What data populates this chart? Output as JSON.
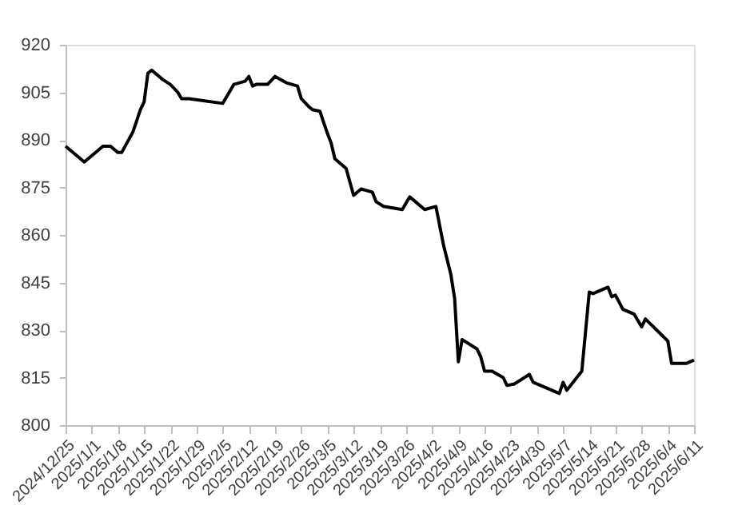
{
  "chart_data": {
    "type": "line",
    "x": [
      "2024-12-25",
      "2024-12-28",
      "2024-12-30",
      "2025-01-04",
      "2025-01-06",
      "2025-01-08",
      "2025-01-09",
      "2025-01-12",
      "2025-01-14",
      "2025-01-15",
      "2025-01-16",
      "2025-01-17",
      "2025-01-20",
      "2025-01-22",
      "2025-01-24",
      "2025-01-25",
      "2025-01-27",
      "2025-02-05",
      "2025-02-06",
      "2025-02-08",
      "2025-02-11",
      "2025-02-12",
      "2025-02-13",
      "2025-02-14",
      "2025-02-17",
      "2025-02-19",
      "2025-02-22",
      "2025-02-25",
      "2025-02-26",
      "2025-02-28",
      "2025-03-01",
      "2025-03-03",
      "2025-03-05",
      "2025-03-06",
      "2025-03-07",
      "2025-03-08",
      "2025-03-10",
      "2025-03-12",
      "2025-03-14",
      "2025-03-17",
      "2025-03-18",
      "2025-03-20",
      "2025-03-25",
      "2025-03-27",
      "2025-03-31",
      "2025-04-03",
      "2025-04-05",
      "2025-04-07",
      "2025-04-08",
      "2025-04-09",
      "2025-04-10",
      "2025-04-14",
      "2025-04-15",
      "2025-04-16",
      "2025-04-18",
      "2025-04-21",
      "2025-04-22",
      "2025-04-24",
      "2025-04-28",
      "2025-04-29",
      "2025-05-06",
      "2025-05-07",
      "2025-05-08",
      "2025-05-12",
      "2025-05-14",
      "2025-05-15",
      "2025-05-19",
      "2025-05-20",
      "2025-05-21",
      "2025-05-23",
      "2025-05-26",
      "2025-05-28",
      "2025-05-29",
      "2025-06-01",
      "2025-06-04",
      "2025-06-05",
      "2025-06-09",
      "2025-06-11"
    ],
    "series": [
      {
        "color": "#000000",
        "values": [
          888,
          885,
          883,
          888,
          888,
          886,
          886,
          892.5,
          899.5,
          902,
          911,
          912,
          909,
          907.5,
          905,
          903,
          903,
          901.5,
          903.5,
          907.5,
          908.5,
          910,
          907,
          907.5,
          907.5,
          910,
          908,
          907,
          903,
          900.5,
          899.5,
          899,
          892,
          889,
          884,
          883,
          881,
          872.5,
          874.5,
          873.5,
          870.5,
          869,
          868,
          872,
          868,
          869,
          857,
          847.5,
          840,
          820,
          827,
          824,
          821.5,
          817,
          817,
          815,
          812.5,
          813,
          816,
          813.5,
          810,
          813.5,
          811,
          817,
          842,
          841.5,
          843.5,
          840.5,
          841,
          836.5,
          835,
          831,
          833.5,
          830,
          826.5,
          819.5,
          819.5,
          820.5
        ]
      }
    ],
    "xlim": [
      "2024-12-25",
      "2025-06-11"
    ],
    "xticks": [
      {
        "value": "2024-12-25",
        "label": "2024/12/25"
      },
      {
        "value": "2025-01-01",
        "label": "2025/1/1"
      },
      {
        "value": "2025-01-08",
        "label": "2025/1/8"
      },
      {
        "value": "2025-01-15",
        "label": "2025/1/15"
      },
      {
        "value": "2025-01-22",
        "label": "2025/1/22"
      },
      {
        "value": "2025-01-29",
        "label": "2025/1/29"
      },
      {
        "value": "2025-02-05",
        "label": "2025/2/5"
      },
      {
        "value": "2025-02-12",
        "label": "2025/2/12"
      },
      {
        "value": "2025-02-19",
        "label": "2025/2/19"
      },
      {
        "value": "2025-02-26",
        "label": "2025/2/26"
      },
      {
        "value": "2025-03-05",
        "label": "2025/3/5"
      },
      {
        "value": "2025-03-12",
        "label": "2025/3/12"
      },
      {
        "value": "2025-03-19",
        "label": "2025/3/19"
      },
      {
        "value": "2025-03-26",
        "label": "2025/3/26"
      },
      {
        "value": "2025-04-02",
        "label": "2025/4/2"
      },
      {
        "value": "2025-04-09",
        "label": "2025/4/9"
      },
      {
        "value": "2025-04-16",
        "label": "2025/4/16"
      },
      {
        "value": "2025-04-23",
        "label": "2025/4/23"
      },
      {
        "value": "2025-04-30",
        "label": "2025/4/30"
      },
      {
        "value": "2025-05-07",
        "label": "2025/5/7"
      },
      {
        "value": "2025-05-14",
        "label": "2025/5/14"
      },
      {
        "value": "2025-05-21",
        "label": "2025/5/21"
      },
      {
        "value": "2025-05-28",
        "label": "2025/5/28"
      },
      {
        "value": "2025-06-04",
        "label": "2025/6/4"
      },
      {
        "value": "2025-06-11",
        "label": "2025/6/11"
      }
    ],
    "ylim": [
      800,
      920
    ],
    "yticks": [
      800,
      815,
      830,
      845,
      860,
      875,
      890,
      905,
      920
    ],
    "grid": false,
    "legend": false,
    "marker": "none",
    "line_style": "solid"
  }
}
